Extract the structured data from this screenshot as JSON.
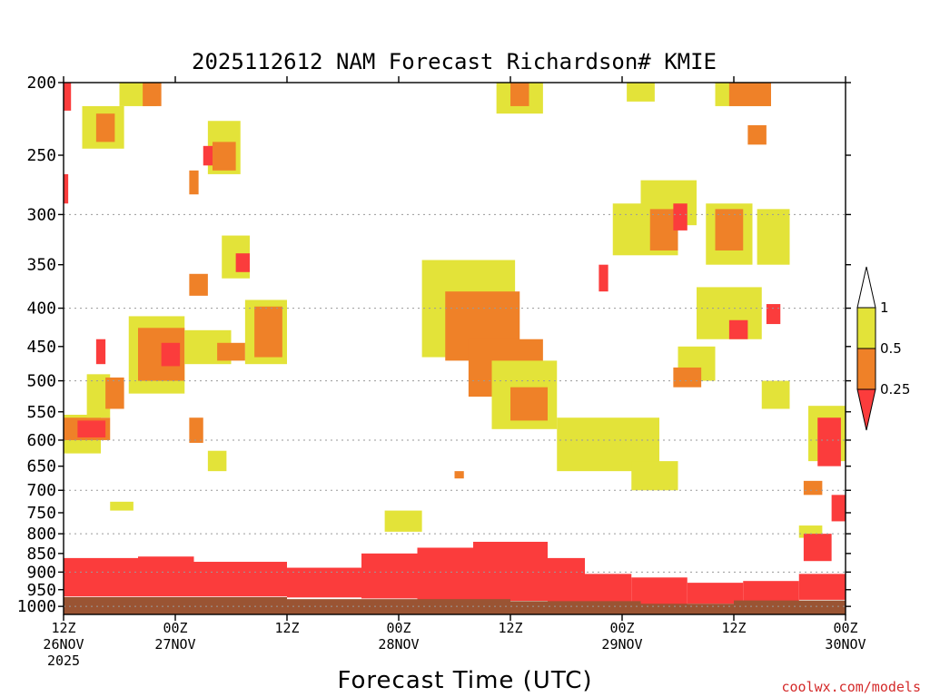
{
  "colors": {
    "ground": "#9a5433",
    "under_025": "#fb3c3c",
    "r025_05": "#ef8128",
    "r05_1": "#e3e339",
    "over_1": "#ffffff",
    "grid": "#9a9a9a",
    "credit": "#d42a2a"
  },
  "chart_data": {
    "type": "heatmap",
    "title": "2025112612 NAM Forecast Richardson# KMIE",
    "xlabel": "Forecast Time (UTC)",
    "ylabel": "",
    "y_scale": "log-pressure",
    "y_inverted": true,
    "ylim": [
      200,
      1025
    ],
    "y_ticks": [
      200,
      250,
      300,
      350,
      400,
      450,
      500,
      550,
      600,
      650,
      700,
      750,
      800,
      850,
      900,
      950,
      1000
    ],
    "grid_levels": [
      300,
      400,
      500,
      600,
      700,
      800,
      900,
      1000
    ],
    "x_unit": "hours since 2025-11-26 12Z",
    "xlim": [
      0,
      84
    ],
    "x_ticks": [
      {
        "hour": 0,
        "line1": "12Z",
        "line2": "26NOV",
        "line3": "2025"
      },
      {
        "hour": 12,
        "line1": "00Z",
        "line2": "27NOV",
        "line3": ""
      },
      {
        "hour": 24,
        "line1": "12Z",
        "line2": "",
        "line3": ""
      },
      {
        "hour": 36,
        "line1": "00Z",
        "line2": "28NOV",
        "line3": ""
      },
      {
        "hour": 48,
        "line1": "12Z",
        "line2": "",
        "line3": ""
      },
      {
        "hour": 60,
        "line1": "00Z",
        "line2": "29NOV",
        "line3": ""
      },
      {
        "hour": 72,
        "line1": "12Z",
        "line2": "",
        "line3": ""
      },
      {
        "hour": 84,
        "line1": "00Z",
        "line2": "30NOV",
        "line3": ""
      }
    ],
    "legend": {
      "placement": "right",
      "levels": [
        "1",
        "0.5",
        "0.25"
      ],
      "classes": [
        "> 1",
        "0.5 – 1",
        "0.25 – 0.5",
        "< 0.25"
      ]
    },
    "regions": [
      {
        "class": "r05_1",
        "hour": [
          0,
          4
        ],
        "p": [
          555,
          625
        ]
      },
      {
        "class": "r025_05",
        "hour": [
          0,
          5
        ],
        "p": [
          560,
          600
        ]
      },
      {
        "class": "under_025",
        "hour": [
          1.5,
          4.5
        ],
        "p": [
          565,
          595
        ]
      },
      {
        "class": "r05_1",
        "hour": [
          2.5,
          5
        ],
        "p": [
          490,
          560
        ]
      },
      {
        "class": "r025_05",
        "hour": [
          4.5,
          6.5
        ],
        "p": [
          495,
          545
        ]
      },
      {
        "class": "r05_1",
        "hour": [
          7,
          13
        ],
        "p": [
          410,
          520
        ]
      },
      {
        "class": "r025_05",
        "hour": [
          8,
          13
        ],
        "p": [
          425,
          500
        ]
      },
      {
        "class": "under_025",
        "hour": [
          10.5,
          12.5
        ],
        "p": [
          445,
          478
        ]
      },
      {
        "class": "r05_1",
        "hour": [
          6,
          10
        ],
        "p": [
          200,
          215
        ]
      },
      {
        "class": "r025_05",
        "hour": [
          8.5,
          10.5
        ],
        "p": [
          200,
          215
        ]
      },
      {
        "class": "r05_1",
        "hour": [
          2,
          6.5
        ],
        "p": [
          215,
          245
        ]
      },
      {
        "class": "r025_05",
        "hour": [
          3.5,
          5.5
        ],
        "p": [
          220,
          240
        ]
      },
      {
        "class": "r05_1",
        "hour": [
          15.5,
          19
        ],
        "p": [
          225,
          265
        ]
      },
      {
        "class": "r025_05",
        "hour": [
          16,
          18.5
        ],
        "p": [
          240,
          262
        ]
      },
      {
        "class": "under_025",
        "hour": [
          15,
          16
        ],
        "p": [
          243,
          258
        ]
      },
      {
        "class": "r025_05",
        "hour": [
          13.5,
          14.5
        ],
        "p": [
          262,
          282
        ]
      },
      {
        "class": "r05_1",
        "hour": [
          17,
          20
        ],
        "p": [
          320,
          365
        ]
      },
      {
        "class": "under_025",
        "hour": [
          18.5,
          20
        ],
        "p": [
          338,
          358
        ]
      },
      {
        "class": "r025_05",
        "hour": [
          13.5,
          15.5
        ],
        "p": [
          360,
          385
        ]
      },
      {
        "class": "r05_1",
        "hour": [
          13,
          18
        ],
        "p": [
          428,
          475
        ]
      },
      {
        "class": "r025_05",
        "hour": [
          16.5,
          19.5
        ],
        "p": [
          445,
          470
        ]
      },
      {
        "class": "r05_1",
        "hour": [
          19.5,
          24
        ],
        "p": [
          390,
          475
        ]
      },
      {
        "class": "r025_05",
        "hour": [
          20.5,
          23.5
        ],
        "p": [
          398,
          465
        ]
      },
      {
        "class": "r025_05",
        "hour": [
          13.5,
          15
        ],
        "p": [
          560,
          605
        ]
      },
      {
        "class": "r05_1",
        "hour": [
          15.5,
          17.5
        ],
        "p": [
          620,
          660
        ]
      },
      {
        "class": "r05_1",
        "hour": [
          38.5,
          48.5
        ],
        "p": [
          345,
          465
        ]
      },
      {
        "class": "r025_05",
        "hour": [
          41,
          49
        ],
        "p": [
          380,
          470
        ]
      },
      {
        "class": "r025_05",
        "hour": [
          43.5,
          51.5
        ],
        "p": [
          440,
          525
        ]
      },
      {
        "class": "r05_1",
        "hour": [
          46,
          53
        ],
        "p": [
          470,
          580
        ]
      },
      {
        "class": "r025_05",
        "hour": [
          48,
          52
        ],
        "p": [
          510,
          565
        ]
      },
      {
        "class": "r05_1",
        "hour": [
          53,
          64
        ],
        "p": [
          560,
          660
        ]
      },
      {
        "class": "r05_1",
        "hour": [
          61,
          66
        ],
        "p": [
          640,
          700
        ]
      },
      {
        "class": "r05_1",
        "hour": [
          46.5,
          51.5
        ],
        "p": [
          200,
          220
        ]
      },
      {
        "class": "r025_05",
        "hour": [
          48,
          50
        ],
        "p": [
          200,
          215
        ]
      },
      {
        "class": "r05_1",
        "hour": [
          60.5,
          63.5
        ],
        "p": [
          200,
          212
        ]
      },
      {
        "class": "r05_1",
        "hour": [
          70,
          76
        ],
        "p": [
          200,
          215
        ]
      },
      {
        "class": "r025_05",
        "hour": [
          71.5,
          76
        ],
        "p": [
          200,
          215
        ]
      },
      {
        "class": "r025_05",
        "hour": [
          73.5,
          75.5
        ],
        "p": [
          228,
          242
        ]
      },
      {
        "class": "r05_1",
        "hour": [
          59,
          66
        ],
        "p": [
          290,
          340
        ]
      },
      {
        "class": "r05_1",
        "hour": [
          62,
          68
        ],
        "p": [
          270,
          310
        ]
      },
      {
        "class": "r025_05",
        "hour": [
          63,
          66
        ],
        "p": [
          295,
          335
        ]
      },
      {
        "class": "under_025",
        "hour": [
          65.5,
          67
        ],
        "p": [
          290,
          315
        ]
      },
      {
        "class": "r05_1",
        "hour": [
          69,
          74
        ],
        "p": [
          290,
          350
        ]
      },
      {
        "class": "r025_05",
        "hour": [
          70,
          73
        ],
        "p": [
          295,
          335
        ]
      },
      {
        "class": "r05_1",
        "hour": [
          74.5,
          78
        ],
        "p": [
          295,
          350
        ]
      },
      {
        "class": "under_025",
        "hour": [
          57.5,
          58.5
        ],
        "p": [
          350,
          380
        ]
      },
      {
        "class": "r05_1",
        "hour": [
          68,
          75
        ],
        "p": [
          375,
          440
        ]
      },
      {
        "class": "under_025",
        "hour": [
          71.5,
          73.5
        ],
        "p": [
          415,
          440
        ]
      },
      {
        "class": "under_025",
        "hour": [
          75.5,
          77
        ],
        "p": [
          395,
          420
        ]
      },
      {
        "class": "r05_1",
        "hour": [
          66,
          70
        ],
        "p": [
          450,
          500
        ]
      },
      {
        "class": "r025_05",
        "hour": [
          65.5,
          68.5
        ],
        "p": [
          480,
          510
        ]
      },
      {
        "class": "r05_1",
        "hour": [
          75,
          78
        ],
        "p": [
          500,
          545
        ]
      },
      {
        "class": "r05_1",
        "hour": [
          80,
          84
        ],
        "p": [
          540,
          640
        ]
      },
      {
        "class": "under_025",
        "hour": [
          81,
          83.5
        ],
        "p": [
          560,
          650
        ]
      },
      {
        "class": "r025_05",
        "hour": [
          79.5,
          81.5
        ],
        "p": [
          680,
          710
        ]
      },
      {
        "class": "under_025",
        "hour": [
          82.5,
          84
        ],
        "p": [
          710,
          770
        ]
      },
      {
        "class": "under_025",
        "hour": [
          0,
          0.8
        ],
        "p": [
          200,
          218
        ]
      },
      {
        "class": "under_025",
        "hour": [
          0,
          0.5
        ],
        "p": [
          265,
          290
        ]
      },
      {
        "class": "under_025",
        "hour": [
          3.5,
          4.5
        ],
        "p": [
          440,
          475
        ]
      },
      {
        "class": "r025_05",
        "hour": [
          42,
          43
        ],
        "p": [
          660,
          675
        ]
      },
      {
        "class": "r05_1",
        "hour": [
          5,
          7.5
        ],
        "p": [
          725,
          745
        ]
      },
      {
        "class": "r05_1",
        "hour": [
          34.5,
          38.5
        ],
        "p": [
          745,
          795
        ]
      },
      {
        "class": "r05_1",
        "hour": [
          79,
          81.5
        ],
        "p": [
          780,
          810
        ]
      },
      {
        "class": "under_025",
        "hour": [
          79.5,
          82.5
        ],
        "p": [
          800,
          870
        ]
      },
      {
        "class": "under_025",
        "hour": [
          0,
          8
        ],
        "p": [
          862,
          970
        ]
      },
      {
        "class": "under_025",
        "hour": [
          8,
          14
        ],
        "p": [
          858,
          970
        ]
      },
      {
        "class": "under_025",
        "hour": [
          14,
          24
        ],
        "p": [
          872,
          970
        ]
      },
      {
        "class": "under_025",
        "hour": [
          24,
          32
        ],
        "p": [
          888,
          973
        ]
      },
      {
        "class": "under_025",
        "hour": [
          32,
          38
        ],
        "p": [
          850,
          976
        ]
      },
      {
        "class": "under_025",
        "hour": [
          38,
          44
        ],
        "p": [
          835,
          980
        ]
      },
      {
        "class": "under_025",
        "hour": [
          44,
          52
        ],
        "p": [
          820,
          983
        ]
      },
      {
        "class": "under_025",
        "hour": [
          52,
          56
        ],
        "p": [
          862,
          985
        ]
      },
      {
        "class": "under_025",
        "hour": [
          56,
          61
        ],
        "p": [
          905,
          995
        ]
      },
      {
        "class": "under_025",
        "hour": [
          61,
          67
        ],
        "p": [
          915,
          995
        ]
      },
      {
        "class": "under_025",
        "hour": [
          67,
          73
        ],
        "p": [
          930,
          992
        ]
      },
      {
        "class": "under_025",
        "hour": [
          73,
          79
        ],
        "p": [
          925,
          985
        ]
      },
      {
        "class": "under_025",
        "hour": [
          79,
          84
        ],
        "p": [
          905,
          980
        ]
      },
      {
        "class": "ground",
        "hour": [
          0,
          24
        ],
        "p": [
          972,
          1025
        ]
      },
      {
        "class": "ground",
        "hour": [
          24,
          48
        ],
        "p": [
          978,
          1025
        ]
      },
      {
        "class": "ground",
        "hour": [
          48,
          62
        ],
        "p": [
          984,
          1025
        ]
      },
      {
        "class": "ground",
        "hour": [
          62,
          72
        ],
        "p": [
          992,
          1025
        ]
      },
      {
        "class": "ground",
        "hour": [
          72,
          84
        ],
        "p": [
          982,
          1025
        ]
      }
    ]
  },
  "credit": "coolwx.com/models"
}
